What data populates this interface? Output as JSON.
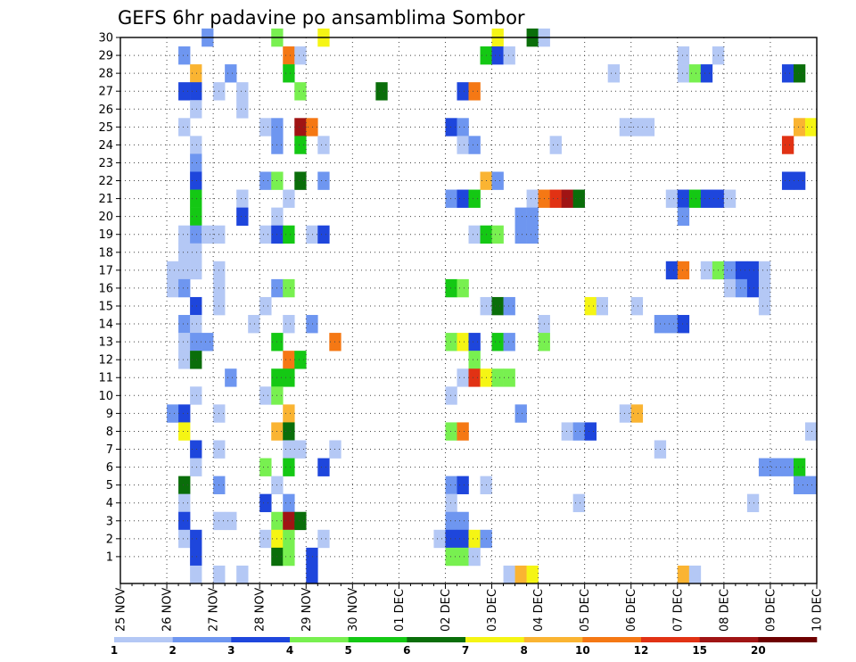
{
  "chart_data": {
    "type": "heatmap",
    "title": "GEFS 6hr padavine po ansamblima Sombor",
    "x_tick_labels": [
      "25 NOV",
      "26 NOV",
      "27 NOV",
      "28 NOV",
      "29 NOV",
      "30 NOV",
      "01 DEC",
      "02 DEC",
      "03 DEC",
      "04 DEC",
      "05 DEC",
      "06 DEC",
      "07 DEC",
      "08 DEC",
      "09 DEC",
      "10 DEC"
    ],
    "y_tick_labels": [
      "1",
      "2",
      "3",
      "4",
      "5",
      "6",
      "7",
      "8",
      "9",
      "10",
      "11",
      "12",
      "13",
      "14",
      "15",
      "16",
      "17",
      "18",
      "19",
      "20",
      "21",
      "22",
      "23",
      "24",
      "25",
      "26",
      "27",
      "28",
      "29",
      "30"
    ],
    "n_timesteps": 60,
    "n_members": 30,
    "grid": true,
    "colorbar": {
      "labels": [
        "1",
        "2",
        "3",
        "4",
        "5",
        "6",
        "7",
        "8",
        "10",
        "12",
        "15",
        "20"
      ],
      "colors": [
        "#b4c8f5",
        "#6e96f0",
        "#1e46dc",
        "#78f050",
        "#14c814",
        "#0a6e0a",
        "#f5f514",
        "#fab432",
        "#f57814",
        "#e13214",
        "#a01414",
        "#6e0000"
      ]
    },
    "cells": [
      [
        7,
        30,
        2
      ],
      [
        13,
        30,
        4
      ],
      [
        17,
        30,
        7
      ],
      [
        32,
        30,
        7
      ],
      [
        35,
        30,
        6
      ],
      [
        36,
        30,
        1
      ],
      [
        5,
        29,
        2
      ],
      [
        14,
        29,
        9
      ],
      [
        15,
        29,
        1
      ],
      [
        31,
        29,
        5
      ],
      [
        32,
        29,
        3
      ],
      [
        33,
        29,
        1
      ],
      [
        48,
        29,
        1
      ],
      [
        51,
        29,
        1
      ],
      [
        6,
        28,
        8
      ],
      [
        9,
        28,
        2
      ],
      [
        14,
        28,
        5
      ],
      [
        42,
        28,
        1
      ],
      [
        48,
        28,
        1
      ],
      [
        49,
        28,
        4
      ],
      [
        50,
        28,
        3
      ],
      [
        57,
        28,
        3
      ],
      [
        58,
        28,
        6
      ],
      [
        5,
        27,
        3
      ],
      [
        6,
        27,
        3
      ],
      [
        8,
        27,
        1
      ],
      [
        10,
        27,
        1
      ],
      [
        15,
        27,
        4
      ],
      [
        22,
        27,
        6
      ],
      [
        29,
        27,
        3
      ],
      [
        30,
        27,
        9
      ],
      [
        6,
        26,
        1
      ],
      [
        10,
        26,
        1
      ],
      [
        5,
        25,
        1
      ],
      [
        12,
        25,
        1
      ],
      [
        13,
        25,
        2
      ],
      [
        15,
        25,
        11
      ],
      [
        16,
        25,
        9
      ],
      [
        28,
        25,
        3
      ],
      [
        29,
        25,
        2
      ],
      [
        43,
        25,
        1
      ],
      [
        44,
        25,
        1
      ],
      [
        45,
        25,
        1
      ],
      [
        58,
        25,
        8
      ],
      [
        59,
        25,
        7
      ],
      [
        6,
        24,
        1
      ],
      [
        13,
        24,
        2
      ],
      [
        15,
        24,
        5
      ],
      [
        17,
        24,
        1
      ],
      [
        29,
        24,
        1
      ],
      [
        30,
        24,
        2
      ],
      [
        37,
        24,
        1
      ],
      [
        57,
        24,
        10
      ],
      [
        6,
        23,
        2
      ],
      [
        6,
        22,
        3
      ],
      [
        12,
        22,
        2
      ],
      [
        13,
        22,
        4
      ],
      [
        15,
        22,
        6
      ],
      [
        17,
        22,
        2
      ],
      [
        31,
        22,
        8
      ],
      [
        32,
        22,
        2
      ],
      [
        57,
        22,
        3
      ],
      [
        58,
        22,
        3
      ],
      [
        6,
        21,
        5
      ],
      [
        10,
        21,
        1
      ],
      [
        14,
        21,
        1
      ],
      [
        28,
        21,
        2
      ],
      [
        29,
        21,
        3
      ],
      [
        30,
        21,
        5
      ],
      [
        35,
        21,
        1
      ],
      [
        36,
        21,
        9
      ],
      [
        37,
        21,
        10
      ],
      [
        38,
        21,
        11
      ],
      [
        39,
        21,
        6
      ],
      [
        47,
        21,
        1
      ],
      [
        48,
        21,
        3
      ],
      [
        49,
        21,
        5
      ],
      [
        50,
        21,
        3
      ],
      [
        51,
        21,
        3
      ],
      [
        52,
        21,
        1
      ],
      [
        6,
        20,
        5
      ],
      [
        10,
        20,
        3
      ],
      [
        13,
        20,
        1
      ],
      [
        34,
        20,
        2
      ],
      [
        35,
        20,
        2
      ],
      [
        48,
        20,
        2
      ],
      [
        5,
        19,
        1
      ],
      [
        6,
        19,
        2
      ],
      [
        7,
        19,
        1
      ],
      [
        8,
        19,
        1
      ],
      [
        12,
        19,
        1
      ],
      [
        13,
        19,
        3
      ],
      [
        14,
        19,
        5
      ],
      [
        16,
        19,
        1
      ],
      [
        17,
        19,
        3
      ],
      [
        30,
        19,
        1
      ],
      [
        31,
        19,
        5
      ],
      [
        32,
        19,
        4
      ],
      [
        34,
        19,
        2
      ],
      [
        35,
        19,
        2
      ],
      [
        5,
        18,
        1
      ],
      [
        6,
        18,
        1
      ],
      [
        4,
        17,
        1
      ],
      [
        5,
        17,
        1
      ],
      [
        6,
        17,
        1
      ],
      [
        8,
        17,
        1
      ],
      [
        47,
        17,
        3
      ],
      [
        48,
        17,
        9
      ],
      [
        50,
        17,
        1
      ],
      [
        51,
        17,
        4
      ],
      [
        52,
        17,
        2
      ],
      [
        53,
        17,
        3
      ],
      [
        54,
        17,
        3
      ],
      [
        55,
        17,
        1
      ],
      [
        4,
        16,
        1
      ],
      [
        5,
        16,
        2
      ],
      [
        8,
        16,
        1
      ],
      [
        13,
        16,
        2
      ],
      [
        14,
        16,
        4
      ],
      [
        28,
        16,
        5
      ],
      [
        29,
        16,
        4
      ],
      [
        52,
        16,
        1
      ],
      [
        53,
        16,
        2
      ],
      [
        54,
        16,
        3
      ],
      [
        55,
        16,
        1
      ],
      [
        6,
        15,
        3
      ],
      [
        8,
        15,
        1
      ],
      [
        12,
        15,
        1
      ],
      [
        31,
        15,
        1
      ],
      [
        32,
        15,
        6
      ],
      [
        33,
        15,
        2
      ],
      [
        40,
        15,
        7
      ],
      [
        41,
        15,
        1
      ],
      [
        44,
        15,
        1
      ],
      [
        55,
        15,
        1
      ],
      [
        5,
        14,
        2
      ],
      [
        6,
        14,
        1
      ],
      [
        11,
        14,
        1
      ],
      [
        14,
        14,
        1
      ],
      [
        16,
        14,
        2
      ],
      [
        36,
        14,
        1
      ],
      [
        46,
        14,
        2
      ],
      [
        47,
        14,
        2
      ],
      [
        48,
        14,
        3
      ],
      [
        5,
        13,
        1
      ],
      [
        6,
        13,
        2
      ],
      [
        7,
        13,
        2
      ],
      [
        13,
        13,
        5
      ],
      [
        18,
        13,
        9
      ],
      [
        28,
        13,
        4
      ],
      [
        29,
        13,
        7
      ],
      [
        30,
        13,
        3
      ],
      [
        32,
        13,
        5
      ],
      [
        33,
        13,
        2
      ],
      [
        36,
        13,
        4
      ],
      [
        5,
        12,
        1
      ],
      [
        6,
        12,
        6
      ],
      [
        14,
        12,
        9
      ],
      [
        15,
        12,
        5
      ],
      [
        30,
        12,
        4
      ],
      [
        9,
        11,
        2
      ],
      [
        13,
        11,
        5
      ],
      [
        14,
        11,
        5
      ],
      [
        29,
        11,
        1
      ],
      [
        30,
        11,
        10
      ],
      [
        31,
        11,
        7
      ],
      [
        32,
        11,
        4
      ],
      [
        33,
        11,
        4
      ],
      [
        6,
        10,
        1
      ],
      [
        12,
        10,
        1
      ],
      [
        13,
        10,
        4
      ],
      [
        28,
        10,
        1
      ],
      [
        4,
        9,
        2
      ],
      [
        5,
        9,
        3
      ],
      [
        8,
        9,
        1
      ],
      [
        14,
        9,
        8
      ],
      [
        34,
        9,
        2
      ],
      [
        43,
        9,
        1
      ],
      [
        44,
        9,
        8
      ],
      [
        5,
        8,
        7
      ],
      [
        13,
        8,
        8
      ],
      [
        14,
        8,
        6
      ],
      [
        28,
        8,
        4
      ],
      [
        29,
        8,
        9
      ],
      [
        38,
        8,
        1
      ],
      [
        39,
        8,
        2
      ],
      [
        40,
        8,
        3
      ],
      [
        59,
        8,
        1
      ],
      [
        6,
        7,
        3
      ],
      [
        8,
        7,
        1
      ],
      [
        14,
        7,
        1
      ],
      [
        15,
        7,
        1
      ],
      [
        18,
        7,
        1
      ],
      [
        46,
        7,
        1
      ],
      [
        6,
        6,
        1
      ],
      [
        12,
        6,
        4
      ],
      [
        14,
        6,
        5
      ],
      [
        17,
        6,
        3
      ],
      [
        55,
        6,
        2
      ],
      [
        56,
        6,
        2
      ],
      [
        57,
        6,
        2
      ],
      [
        58,
        6,
        5
      ],
      [
        5,
        5,
        6
      ],
      [
        8,
        5,
        2
      ],
      [
        13,
        5,
        1
      ],
      [
        28,
        5,
        2
      ],
      [
        29,
        5,
        3
      ],
      [
        31,
        5,
        1
      ],
      [
        58,
        5,
        2
      ],
      [
        59,
        5,
        2
      ],
      [
        5,
        4,
        1
      ],
      [
        12,
        4,
        3
      ],
      [
        14,
        4,
        2
      ],
      [
        28,
        4,
        1
      ],
      [
        39,
        4,
        1
      ],
      [
        54,
        4,
        1
      ],
      [
        5,
        3,
        3
      ],
      [
        8,
        3,
        1
      ],
      [
        9,
        3,
        1
      ],
      [
        13,
        3,
        4
      ],
      [
        14,
        3,
        11
      ],
      [
        15,
        3,
        6
      ],
      [
        28,
        3,
        2
      ],
      [
        29,
        3,
        2
      ],
      [
        5,
        2,
        1
      ],
      [
        6,
        2,
        3
      ],
      [
        12,
        2,
        1
      ],
      [
        13,
        2,
        7
      ],
      [
        14,
        2,
        4
      ],
      [
        17,
        2,
        1
      ],
      [
        27,
        2,
        1
      ],
      [
        28,
        2,
        3
      ],
      [
        29,
        2,
        3
      ],
      [
        30,
        2,
        7
      ],
      [
        31,
        2,
        2
      ],
      [
        6,
        1,
        3
      ],
      [
        13,
        1,
        6
      ],
      [
        14,
        1,
        4
      ],
      [
        16,
        1,
        3
      ],
      [
        28,
        1,
        4
      ],
      [
        29,
        1,
        4
      ],
      [
        30,
        1,
        1
      ],
      [
        6,
        0,
        1
      ],
      [
        8,
        0,
        1
      ],
      [
        10,
        0,
        1
      ],
      [
        16,
        0,
        3
      ],
      [
        33,
        0,
        1
      ],
      [
        34,
        0,
        8
      ],
      [
        35,
        0,
        7
      ],
      [
        48,
        0,
        8
      ],
      [
        49,
        0,
        1
      ]
    ]
  }
}
